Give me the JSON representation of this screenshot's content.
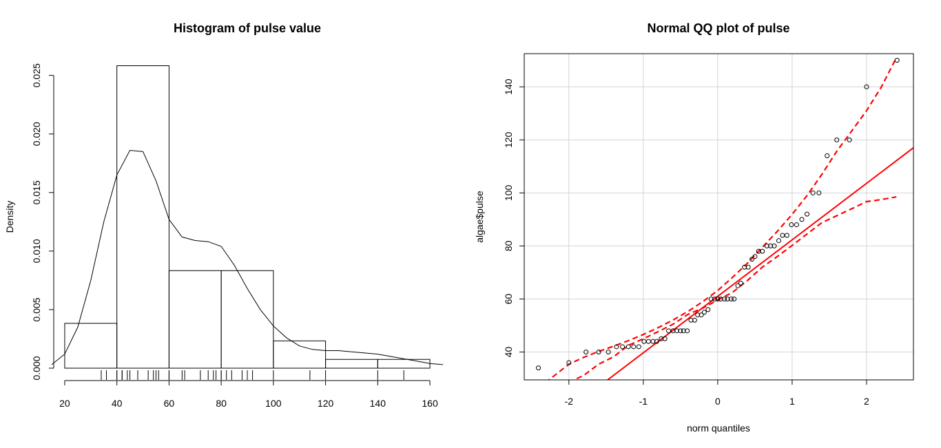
{
  "chart_data": [
    {
      "type": "bar",
      "title": "Histogram of pulse value",
      "xlabel": "",
      "ylabel": "Density",
      "xlim": [
        15,
        165
      ],
      "ylim": [
        0,
        0.0258
      ],
      "x_ticks": [
        20,
        40,
        60,
        80,
        100,
        120,
        140,
        160
      ],
      "y_ticks": [
        0.0,
        0.005,
        0.01,
        0.015,
        0.02,
        0.025
      ],
      "y_tick_labels": [
        "0.000",
        "0.005",
        "0.010",
        "0.015",
        "0.020",
        "0.025"
      ],
      "bins": [
        {
          "from": 20,
          "to": 40,
          "density": 0.00383
        },
        {
          "from": 40,
          "to": 60,
          "density": 0.02583
        },
        {
          "from": 60,
          "to": 80,
          "density": 0.00833
        },
        {
          "from": 80,
          "to": 100,
          "density": 0.00833
        },
        {
          "from": 100,
          "to": 120,
          "density": 0.00233
        },
        {
          "from": 120,
          "to": 140,
          "density": 0.00075
        },
        {
          "from": 140,
          "to": 160,
          "density": 0.00075
        }
      ],
      "density_curve": {
        "x": [
          15,
          20,
          25,
          30,
          35,
          40,
          45,
          50,
          55,
          60,
          65,
          70,
          75,
          80,
          85,
          90,
          95,
          100,
          105,
          110,
          115,
          120,
          125,
          130,
          135,
          140,
          145,
          150,
          155,
          160,
          165
        ],
        "y": [
          0.0003,
          0.0012,
          0.0035,
          0.0075,
          0.0125,
          0.0165,
          0.0186,
          0.0185,
          0.016,
          0.0127,
          0.0112,
          0.0109,
          0.0108,
          0.0104,
          0.0088,
          0.0068,
          0.005,
          0.0036,
          0.0026,
          0.0019,
          0.0016,
          0.0015,
          0.0015,
          0.0014,
          0.0013,
          0.0012,
          0.001,
          0.0008,
          0.0006,
          0.0004,
          0.0003
        ]
      },
      "rug": [
        34,
        36,
        40,
        40,
        42,
        42,
        44,
        45,
        48,
        52,
        54,
        55,
        56,
        60,
        60,
        65,
        66,
        72,
        75,
        77,
        78,
        80,
        80,
        82,
        84,
        88,
        90,
        92,
        100,
        114,
        120,
        140,
        150
      ]
    },
    {
      "type": "scatter",
      "title": "Normal QQ plot of pulse",
      "xlabel": "norm quantiles",
      "ylabel": "algae$pulse",
      "xlim": [
        -2.6,
        2.63
      ],
      "ylim": [
        29.5,
        152.5
      ],
      "x_ticks": [
        -2,
        -1,
        0,
        1,
        2
      ],
      "y_ticks": [
        40,
        60,
        80,
        100,
        120,
        140
      ],
      "grid": true,
      "points": {
        "x": [
          -2.41,
          -2.0,
          -1.77,
          -1.6,
          -1.47,
          -1.36,
          -1.28,
          -1.2,
          -1.13,
          -1.06,
          -0.99,
          -0.93,
          -0.87,
          -0.82,
          -0.76,
          -0.71,
          -0.66,
          -0.6,
          -0.55,
          -0.5,
          -0.46,
          -0.41,
          -0.36,
          -0.31,
          -0.27,
          -0.22,
          -0.18,
          -0.13,
          -0.09,
          -0.04,
          0.0,
          0.04,
          0.09,
          0.13,
          0.18,
          0.22,
          0.27,
          0.31,
          0.36,
          0.41,
          0.46,
          0.5,
          0.55,
          0.6,
          0.66,
          0.71,
          0.76,
          0.82,
          0.87,
          0.93,
          0.99,
          1.06,
          1.13,
          1.2,
          1.28,
          1.36,
          1.47,
          1.6,
          1.77,
          2.0,
          2.41
        ],
        "y": [
          34,
          36,
          40,
          40,
          40,
          42,
          42,
          42,
          42,
          42,
          44,
          44,
          44,
          44,
          45,
          45,
          48,
          48,
          48,
          48,
          48,
          48,
          52,
          52,
          54,
          54,
          55,
          56,
          60,
          60,
          60,
          60,
          60,
          60,
          60,
          60,
          65,
          66,
          72,
          72,
          75,
          76,
          78,
          78,
          80,
          80,
          80,
          82,
          84,
          84,
          88,
          88,
          90,
          92,
          100,
          100,
          114,
          120,
          120,
          140,
          150
        ]
      },
      "reference_line": {
        "intercept": 61.0,
        "slope": 21.3,
        "color": "#ff0000"
      },
      "envelope": {
        "x": [
          -2.6,
          -2.4,
          -2.2,
          -2.0,
          -1.8,
          -1.6,
          -1.4,
          -1.2,
          -1.0,
          -0.8,
          -0.6,
          -0.4,
          -0.2,
          0.0,
          0.2,
          0.4,
          0.6,
          0.8,
          1.0,
          1.2,
          1.4,
          1.6,
          1.8,
          2.0,
          2.2,
          2.4
        ],
        "upper": [
          22.2,
          26.6,
          31.0,
          35.4,
          38.0,
          40.2,
          42.2,
          44.3,
          46.6,
          49.2,
          52.1,
          55.3,
          59.0,
          63.2,
          68.2,
          73.5,
          79.5,
          85.5,
          91.9,
          99.0,
          107.0,
          115.7,
          123.3,
          131.0,
          140.0,
          151.0
        ],
        "lower": [
          12.0,
          16.0,
          22.0,
          28.5,
          31.2,
          35.4,
          38.2,
          42.5,
          45.0,
          47.7,
          50.5,
          54.2,
          56.6,
          59.6,
          62.5,
          67.0,
          72.0,
          76.0,
          80.2,
          84.5,
          88.8,
          91.4,
          94.0,
          96.7,
          97.5,
          98.5
        ],
        "color": "#ff0000"
      }
    }
  ]
}
